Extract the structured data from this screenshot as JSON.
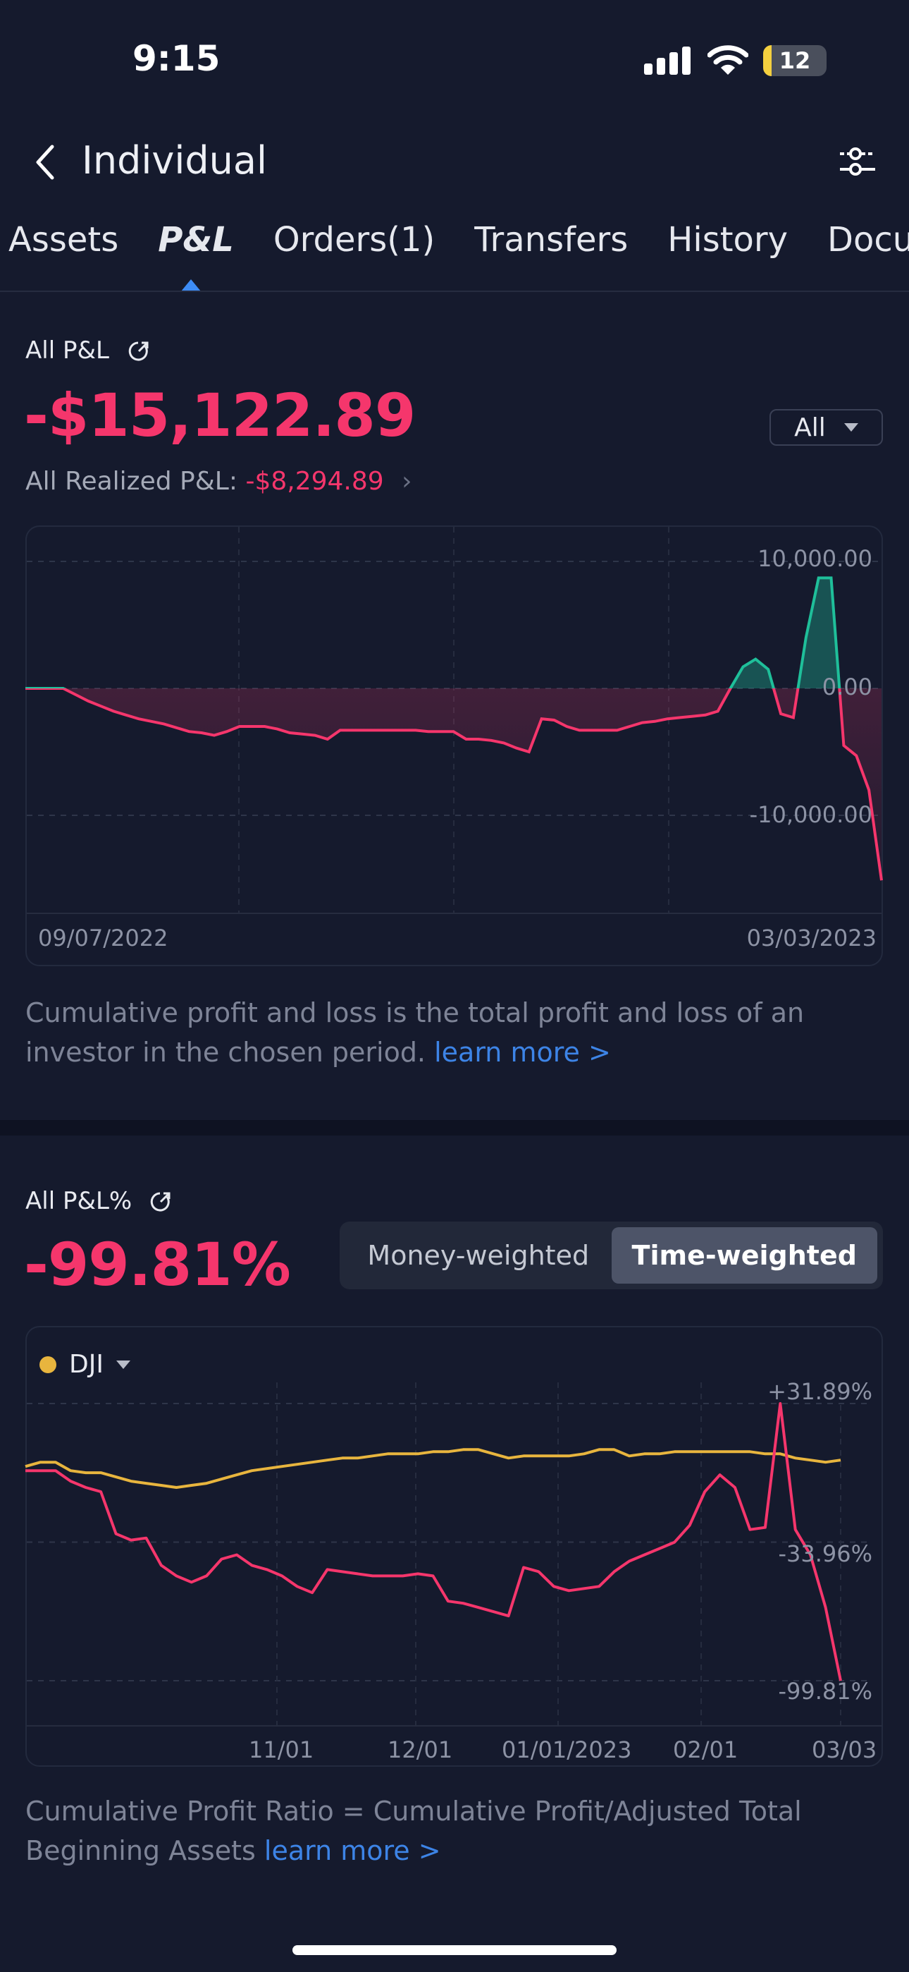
{
  "status_bar": {
    "time": "9:15",
    "battery": "12"
  },
  "header": {
    "title": "Individual",
    "back_icon": "chevron-left-icon",
    "filter_icon": "sliders-icon"
  },
  "tabs": [
    {
      "label": "Assets",
      "active": false
    },
    {
      "label": "P&L",
      "active": true
    },
    {
      "label": "Orders(1)",
      "active": false
    },
    {
      "label": "Transfers",
      "active": false
    },
    {
      "label": "History",
      "active": false
    },
    {
      "label": "Docum",
      "active": false
    }
  ],
  "pnl": {
    "label": "All P&L",
    "value": "-$15,122.89",
    "period": "All",
    "realized_label": "All Realized P&L:",
    "realized_value": "-$8,294.89",
    "description": "Cumulative profit and loss is the total profit and loss of an investor in the chosen period.",
    "learn_more": "learn more >"
  },
  "pnl_pct": {
    "label": "All P&L%",
    "value": "-99.81%",
    "toggle": [
      "Money-weighted",
      "Time-weighted"
    ],
    "toggle_active": "Time-weighted",
    "benchmark": "DJI",
    "description": "Cumulative Profit Ratio = Cumulative Profit/Adjusted Total Beginning Assets",
    "learn_more": "learn more >"
  },
  "colors": {
    "negative": "#f5366c",
    "positive": "#1fbf9a",
    "benchmark": "#e8b53e",
    "accent": "#3d84e6"
  },
  "chart_data": [
    {
      "type": "area",
      "x_start": "09/07/2022",
      "x_end": "03/03/2023",
      "x_tick_labels": [
        "09/07/2022",
        "03/03/2023"
      ],
      "y_tick_labels": [
        "10,000.00",
        "0.00",
        "-10,000.00"
      ],
      "y_ticks": [
        10000,
        0,
        -10000
      ],
      "grid": true,
      "values": [
        0,
        0,
        0,
        0,
        -500,
        -1000,
        -1400,
        -1800,
        -2100,
        -2400,
        -2600,
        -2800,
        -3100,
        -3400,
        -3500,
        -3700,
        -3400,
        -3000,
        -3000,
        -3000,
        -3200,
        -3500,
        -3600,
        -3700,
        -4000,
        -3300,
        -3300,
        -3300,
        -3300,
        -3300,
        -3300,
        -3300,
        -3400,
        -3400,
        -3400,
        -4000,
        -4000,
        -4100,
        -4300,
        -4700,
        -5000,
        -2400,
        -2500,
        -3000,
        -3300,
        -3300,
        -3300,
        -3300,
        -3000,
        -2700,
        -2600,
        -2400,
        -2300,
        -2200,
        -2100,
        -1800,
        0,
        1700,
        2300,
        1500,
        -2000,
        -2300,
        4000,
        8700,
        8700,
        -4500,
        -5300,
        -8000,
        -15122.89
      ]
    },
    {
      "type": "line",
      "x_start": "09/07/2022",
      "x_end": "03/03/2023",
      "x_tick_labels": [
        "11/01",
        "12/01",
        "01/01/2023",
        "02/01",
        "03/03"
      ],
      "y_tick_labels": [
        "+31.89%",
        "-33.96%",
        "-99.81%"
      ],
      "y_ticks": [
        31.89,
        -33.96,
        -99.81
      ],
      "grid": true,
      "legend": "top-left",
      "series": [
        {
          "name": "",
          "color": "#f5366c",
          "values": [
            0,
            0,
            0,
            -5,
            -8,
            -10,
            -30,
            -33,
            -32,
            -45,
            -50,
            -53,
            -50,
            -42,
            -40,
            -45,
            -47,
            -50,
            -55,
            -58,
            -47,
            -48,
            -49,
            -50,
            -50,
            -50,
            -49,
            -50,
            -62,
            -63,
            -65,
            -67,
            -69,
            -46,
            -48,
            -55,
            -57,
            -56,
            -55,
            -48,
            -43,
            -40,
            -37,
            -34,
            -26,
            -10,
            -2,
            -8,
            -28,
            -27,
            31.89,
            -28,
            -40,
            -65,
            -99.81
          ]
        },
        {
          "name": "DJI",
          "color": "#e8b53e",
          "values": [
            2,
            4,
            4,
            0,
            -1,
            -1,
            -3,
            -5,
            -6,
            -7,
            -8,
            -7,
            -6,
            -4,
            -2,
            0,
            1,
            2,
            3,
            4,
            5,
            6,
            6,
            7,
            8,
            8,
            8,
            9,
            9,
            10,
            10,
            8,
            6,
            7,
            7,
            7,
            7,
            8,
            10,
            10,
            7,
            8,
            8,
            9,
            9,
            9,
            9,
            9,
            9,
            8,
            8,
            6,
            5,
            4,
            5
          ]
        }
      ]
    }
  ]
}
